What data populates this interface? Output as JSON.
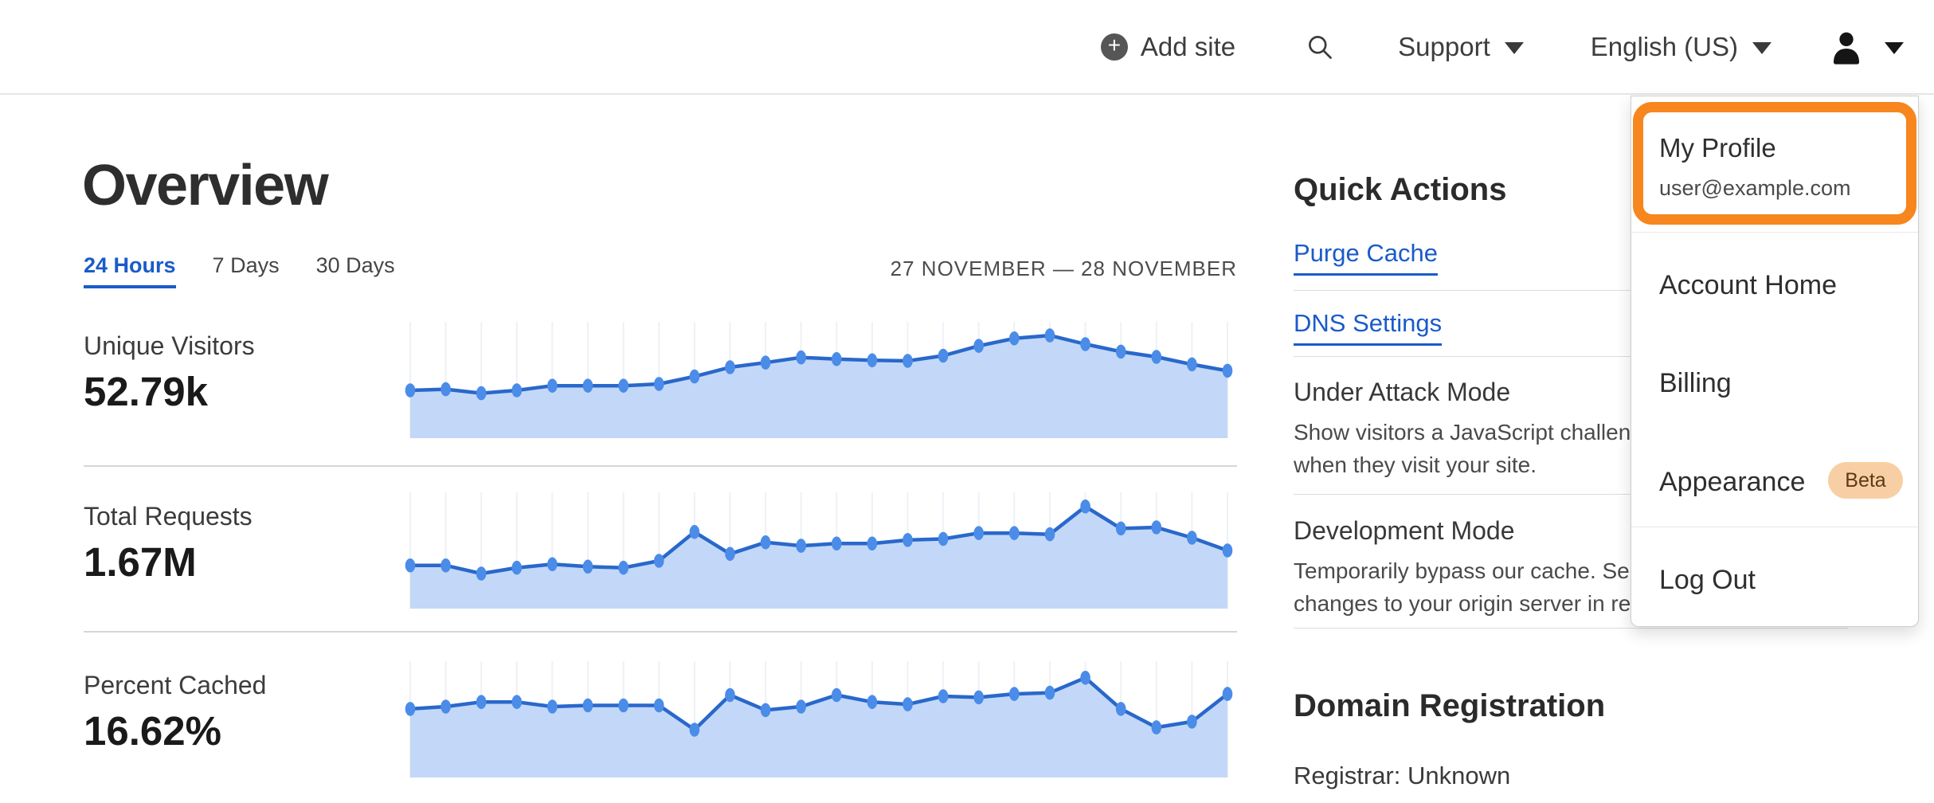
{
  "header": {
    "add_site": "Add site",
    "support": "Support",
    "language": "English (US)"
  },
  "overview": {
    "title": "Overview",
    "tabs": [
      {
        "label": "24 Hours",
        "active": true
      },
      {
        "label": "7 Days",
        "active": false
      },
      {
        "label": "30 Days",
        "active": false
      }
    ],
    "date_range": "27 NOVEMBER — 28 NOVEMBER"
  },
  "metrics": [
    {
      "label": "Unique Visitors",
      "value": "52.79k"
    },
    {
      "label": "Total Requests",
      "value": "1.67M"
    },
    {
      "label": "Percent Cached",
      "value": "16.62%"
    }
  ],
  "chart_data": [
    {
      "type": "area",
      "title": "Unique Visitors",
      "total_label": "52.79k",
      "x_unit": "hours over 24-hour window, 27 November — 28 November",
      "ylim": [
        0,
        1
      ],
      "grid": "vertical gridlines at each point",
      "legend": "none",
      "points_normalized": [
        0.4,
        0.41,
        0.375,
        0.4,
        0.44,
        0.44,
        0.44,
        0.455,
        0.52,
        0.6,
        0.64,
        0.685,
        0.67,
        0.66,
        0.655,
        0.7,
        0.785,
        0.85,
        0.875,
        0.8,
        0.735,
        0.69,
        0.625,
        0.57
      ]
    },
    {
      "type": "area",
      "title": "Total Requests",
      "total_label": "1.67M",
      "x_unit": "hours over 24-hour window, 27 November — 28 November",
      "ylim": [
        0,
        1
      ],
      "grid": "vertical gridlines at each point",
      "legend": "none",
      "points_normalized": [
        0.36,
        0.36,
        0.29,
        0.34,
        0.37,
        0.35,
        0.34,
        0.4,
        0.65,
        0.46,
        0.56,
        0.53,
        0.55,
        0.55,
        0.58,
        0.59,
        0.64,
        0.64,
        0.63,
        0.87,
        0.68,
        0.69,
        0.6,
        0.49
      ]
    },
    {
      "type": "area",
      "title": "Percent Cached",
      "total_label": "16.62%",
      "x_unit": "hours over 24-hour window, 27 November — 28 November",
      "ylim": [
        0,
        1
      ],
      "grid": "vertical gridlines at each point",
      "legend": "none",
      "points_normalized": [
        0.58,
        0.6,
        0.64,
        0.64,
        0.6,
        0.61,
        0.61,
        0.61,
        0.4,
        0.7,
        0.57,
        0.6,
        0.7,
        0.64,
        0.62,
        0.69,
        0.68,
        0.71,
        0.72,
        0.85,
        0.58,
        0.42,
        0.47,
        0.71
      ]
    }
  ],
  "chart_style": {
    "grid_color": "#eef1f5",
    "area_color": "#c3d8f8",
    "line_color": "#2968cb",
    "dot_color": "#4b8ce8"
  },
  "quick_actions": {
    "title": "Quick Actions",
    "links": [
      {
        "label": "Purge Cache"
      },
      {
        "label": "DNS Settings"
      }
    ],
    "toggles": [
      {
        "label": "Under Attack Mode",
        "description_lines": [
          "Show visitors a JavaScript challenge",
          "when they visit your site."
        ]
      },
      {
        "label": "Development Mode",
        "description_lines": [
          "Temporarily bypass our cache. See",
          "changes to your origin server in real time."
        ]
      }
    ]
  },
  "domain_registration": {
    "title": "Domain Registration",
    "registrar_line": "Registrar: Unknown"
  },
  "account_menu": {
    "items": [
      {
        "label": "My Profile",
        "sublabel": "user@example.com",
        "highlighted": true
      },
      {
        "label": "Account Home"
      },
      {
        "label": "Billing"
      },
      {
        "label": "Appearance",
        "badge": "Beta"
      },
      {
        "label": "Log Out"
      }
    ],
    "highlight_color": "#F6861D",
    "badge_bg": "#F8CFA4",
    "badge_text_color": "#5C3A16",
    "link_blue": "#1a5bc9"
  }
}
